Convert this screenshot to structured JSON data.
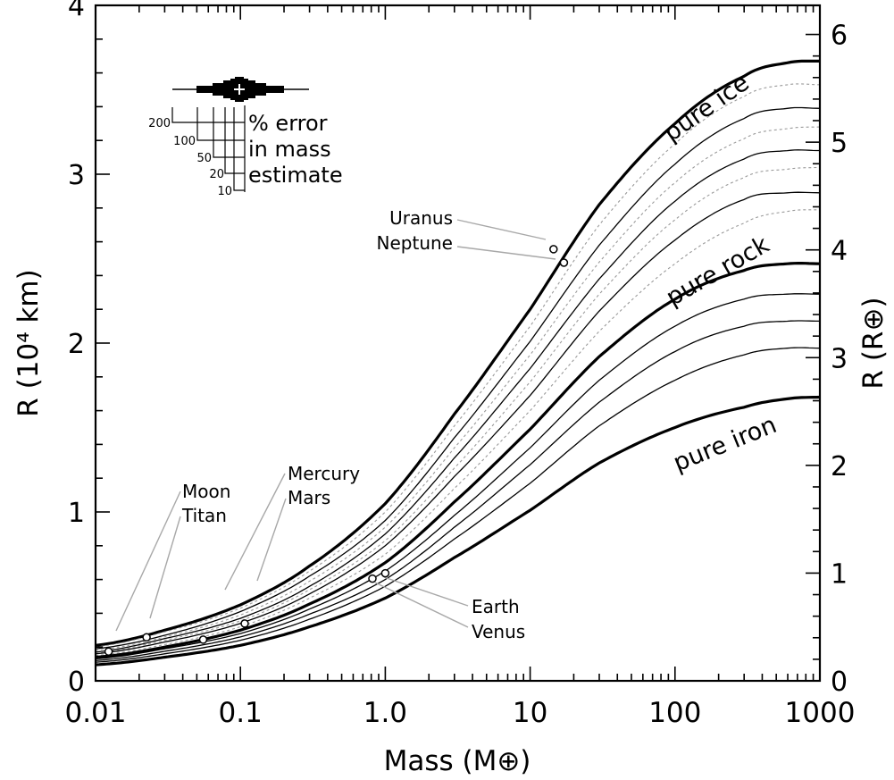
{
  "chart_data": {
    "type": "line",
    "xlabel": "Mass (M⊕)",
    "ylabel": "R (10⁴ km)",
    "y2label": "R (R⊕)",
    "x_scale": "log",
    "xlim": [
      0.01,
      1000
    ],
    "ylim": [
      0,
      4
    ],
    "y2lim": [
      0,
      6.27
    ],
    "x_ticks": [
      0.01,
      0.1,
      1.0,
      10,
      100,
      1000
    ],
    "x_tick_labels": [
      "0.01",
      "0.1",
      "1.0",
      "10",
      "100",
      "1000"
    ],
    "y_ticks": [
      0,
      1,
      2,
      3,
      4
    ],
    "y_tick_labels": [
      "0",
      "1",
      "2",
      "3",
      "4"
    ],
    "y2_ticks": [
      0,
      1,
      2,
      3,
      4,
      5,
      6
    ],
    "y2_tick_labels": [
      "0",
      "1",
      "2",
      "3",
      "4",
      "5",
      "6"
    ],
    "grid": false,
    "x": [
      0.01,
      0.03,
      0.1,
      0.3,
      1,
      3,
      10,
      30,
      100,
      300,
      600,
      1000
    ],
    "series": [
      {
        "label": "pure ice",
        "style": "thick",
        "values": [
          0.21,
          0.3,
          0.45,
          0.68,
          1.05,
          1.58,
          2.2,
          2.82,
          3.3,
          3.58,
          3.66,
          3.67
        ]
      },
      {
        "style": "dotted",
        "values": [
          0.2,
          0.29,
          0.43,
          0.65,
          1.0,
          1.51,
          2.1,
          2.7,
          3.18,
          3.46,
          3.53,
          3.53
        ]
      },
      {
        "style": "thin",
        "values": [
          0.19,
          0.27,
          0.41,
          0.62,
          0.95,
          1.44,
          2.01,
          2.58,
          3.06,
          3.33,
          3.39,
          3.39
        ]
      },
      {
        "style": "dotted",
        "values": [
          0.18,
          0.26,
          0.39,
          0.59,
          0.91,
          1.38,
          1.93,
          2.48,
          2.95,
          3.21,
          3.27,
          3.28
        ]
      },
      {
        "style": "thin",
        "values": [
          0.17,
          0.25,
          0.37,
          0.56,
          0.87,
          1.32,
          1.85,
          2.38,
          2.84,
          3.09,
          3.14,
          3.14
        ]
      },
      {
        "style": "dotted",
        "values": [
          0.165,
          0.24,
          0.355,
          0.54,
          0.83,
          1.26,
          1.77,
          2.29,
          2.73,
          2.98,
          3.03,
          3.04
        ]
      },
      {
        "style": "thin",
        "values": [
          0.16,
          0.23,
          0.34,
          0.515,
          0.8,
          1.21,
          1.69,
          2.19,
          2.61,
          2.85,
          2.89,
          2.89
        ]
      },
      {
        "style": "dotted",
        "values": [
          0.15,
          0.215,
          0.32,
          0.49,
          0.75,
          1.14,
          1.6,
          2.07,
          2.47,
          2.71,
          2.78,
          2.79
        ]
      },
      {
        "label": "pure rock",
        "style": "thick",
        "values": [
          0.14,
          0.2,
          0.3,
          0.455,
          0.7,
          1.06,
          1.49,
          1.92,
          2.26,
          2.43,
          2.47,
          2.47
        ]
      },
      {
        "style": "thin",
        "values": [
          0.13,
          0.19,
          0.28,
          0.425,
          0.65,
          0.98,
          1.38,
          1.78,
          2.1,
          2.26,
          2.29,
          2.29
        ]
      },
      {
        "style": "thin",
        "values": [
          0.12,
          0.175,
          0.26,
          0.395,
          0.6,
          0.91,
          1.28,
          1.65,
          1.95,
          2.1,
          2.13,
          2.13
        ]
      },
      {
        "style": "thin",
        "values": [
          0.11,
          0.16,
          0.24,
          0.365,
          0.56,
          0.84,
          1.17,
          1.51,
          1.78,
          1.93,
          1.97,
          1.97
        ]
      },
      {
        "label": "pure iron",
        "style": "thick",
        "values": [
          0.095,
          0.14,
          0.21,
          0.32,
          0.49,
          0.73,
          1.01,
          1.29,
          1.5,
          1.62,
          1.67,
          1.68
        ]
      }
    ],
    "planets": [
      {
        "name": "Moon",
        "mass": 0.0123,
        "radius": 0.1737
      },
      {
        "name": "Titan",
        "mass": 0.0225,
        "radius": 0.2575
      },
      {
        "name": "Mercury",
        "mass": 0.0553,
        "radius": 0.244
      },
      {
        "name": "Mars",
        "mass": 0.107,
        "radius": 0.339
      },
      {
        "name": "Venus",
        "mass": 0.815,
        "radius": 0.6052
      },
      {
        "name": "Earth",
        "mass": 1.0,
        "radius": 0.6371
      },
      {
        "name": "Uranus",
        "mass": 14.5,
        "radius": 2.5559
      },
      {
        "name": "Neptune",
        "mass": 17.1,
        "radius": 2.4764
      }
    ],
    "error_legend": {
      "text_lines": [
        "% error",
        "in mass",
        "estimate"
      ],
      "tick_labels": [
        "200",
        "100",
        "50",
        "20",
        "10"
      ]
    }
  }
}
